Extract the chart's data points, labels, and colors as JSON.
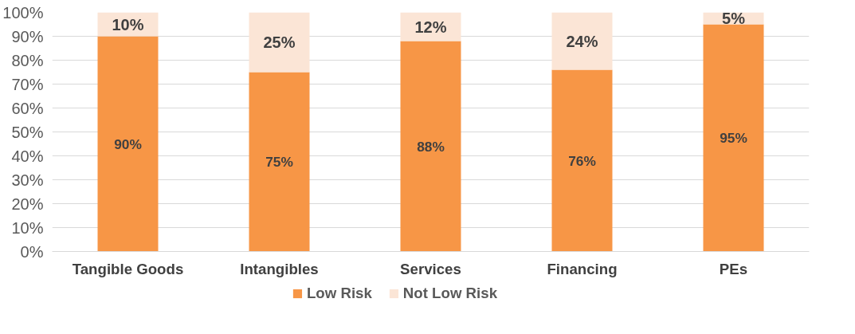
{
  "chart_data": {
    "type": "bar",
    "stacked": true,
    "categories": [
      "Tangible Goods",
      "Intangibles",
      "Services",
      "Financing",
      "PEs"
    ],
    "series": [
      {
        "name": "Low Risk",
        "color": "#f79646",
        "values": [
          90,
          75,
          88,
          76,
          95
        ],
        "value_labels": [
          "90%",
          "75%",
          "88%",
          "76%",
          "95%"
        ]
      },
      {
        "name": "Not Low Risk",
        "color": "#fbe5d6",
        "values": [
          10,
          25,
          12,
          24,
          5
        ],
        "value_labels": [
          "10%",
          "25%",
          "12%",
          "24%",
          "5%"
        ]
      }
    ],
    "ylim": [
      0,
      100
    ],
    "yticks": [
      {
        "value": 0,
        "label": "0%"
      },
      {
        "value": 10,
        "label": "10%"
      },
      {
        "value": 20,
        "label": "20%"
      },
      {
        "value": 30,
        "label": "30%"
      },
      {
        "value": 40,
        "label": "40%"
      },
      {
        "value": 50,
        "label": "50%"
      },
      {
        "value": 60,
        "label": "60%"
      },
      {
        "value": 70,
        "label": "70%"
      },
      {
        "value": 80,
        "label": "80%"
      },
      {
        "value": 90,
        "label": "90%"
      },
      {
        "value": 100,
        "label": "100%"
      }
    ],
    "grid": "y",
    "legend": "bottom"
  }
}
